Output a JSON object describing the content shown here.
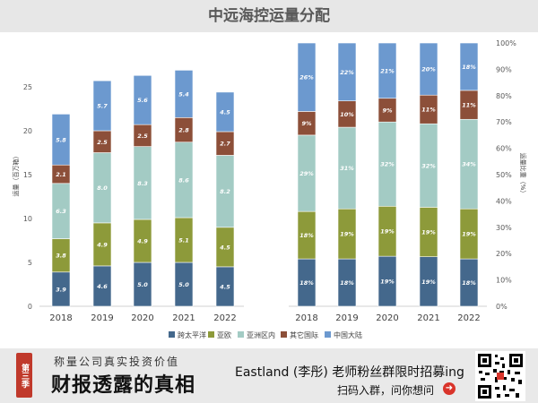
{
  "chart_data": [
    {
      "type": "bar",
      "stacked": true,
      "title": "中远海控运量分配",
      "ylabel": "运量（百万箱）",
      "ylim": [
        0,
        30
      ],
      "yticks": [
        0,
        5,
        10,
        15,
        20,
        25
      ],
      "categories": [
        "2018",
        "2019",
        "2020",
        "2021",
        "2022"
      ],
      "series": [
        {
          "name": "跨太平洋",
          "color": "#44688c",
          "values": [
            3.9,
            4.6,
            5.0,
            5.0,
            4.5
          ]
        },
        {
          "name": "亚欧",
          "color": "#8d9a3a",
          "values": [
            3.8,
            4.9,
            4.9,
            5.1,
            4.5
          ]
        },
        {
          "name": "亚洲区内",
          "color": "#a3cbc4",
          "values": [
            6.3,
            8.0,
            8.3,
            8.6,
            8.2
          ]
        },
        {
          "name": "其它国际",
          "color": "#8c4f39",
          "values": [
            2.1,
            2.5,
            2.5,
            2.8,
            2.7
          ]
        },
        {
          "name": "中国大陆",
          "color": "#6c99cf",
          "values": [
            5.8,
            5.7,
            5.6,
            5.4,
            4.5
          ]
        }
      ]
    },
    {
      "type": "bar",
      "stacked": true,
      "percent": true,
      "ylabel": "运量比重（%）",
      "ylim": [
        0,
        100
      ],
      "yticks": [
        "0%",
        "10%",
        "20%",
        "30%",
        "40%",
        "50%",
        "60%",
        "70%",
        "80%",
        "90%",
        "100%"
      ],
      "categories": [
        "2018",
        "2019",
        "2020",
        "2021",
        "2022"
      ],
      "series": [
        {
          "name": "跨太平洋",
          "color": "#44688c",
          "values": [
            18,
            18,
            19,
            19,
            18
          ]
        },
        {
          "name": "亚欧",
          "color": "#8d9a3a",
          "values": [
            18,
            19,
            19,
            19,
            19
          ]
        },
        {
          "name": "亚洲区内",
          "color": "#a3cbc4",
          "values": [
            29,
            31,
            32,
            32,
            34
          ]
        },
        {
          "name": "其它国际",
          "color": "#8c4f39",
          "values": [
            9,
            10,
            9,
            11,
            11
          ]
        },
        {
          "name": "中国大陆",
          "color": "#6c99cf",
          "values": [
            26,
            22,
            21,
            20,
            18
          ]
        }
      ],
      "labels": [
        [
          "18%",
          "18%",
          "19%",
          "19%",
          "18%"
        ],
        [
          "18%",
          "19%",
          "19%",
          "19%",
          "19%"
        ],
        [
          "29%",
          "31%",
          "32%",
          "32%",
          "34%"
        ],
        [
          "9%",
          "10%",
          "9%",
          "11%",
          "11%"
        ],
        [
          "26%",
          "22%",
          "21%",
          "20%",
          "18%"
        ]
      ]
    }
  ],
  "legend": [
    "跨太平洋",
    "亚欧",
    "亚洲区内",
    "其它国际",
    "中国大陆"
  ],
  "footer": {
    "badge": "第三季",
    "subtitle": "称量公司真实投资价值",
    "main": "财报透露的真相",
    "promo": "Eastland (李彤) 老师粉丝群限时招募ing",
    "cta": "扫码入群，问你想问"
  }
}
